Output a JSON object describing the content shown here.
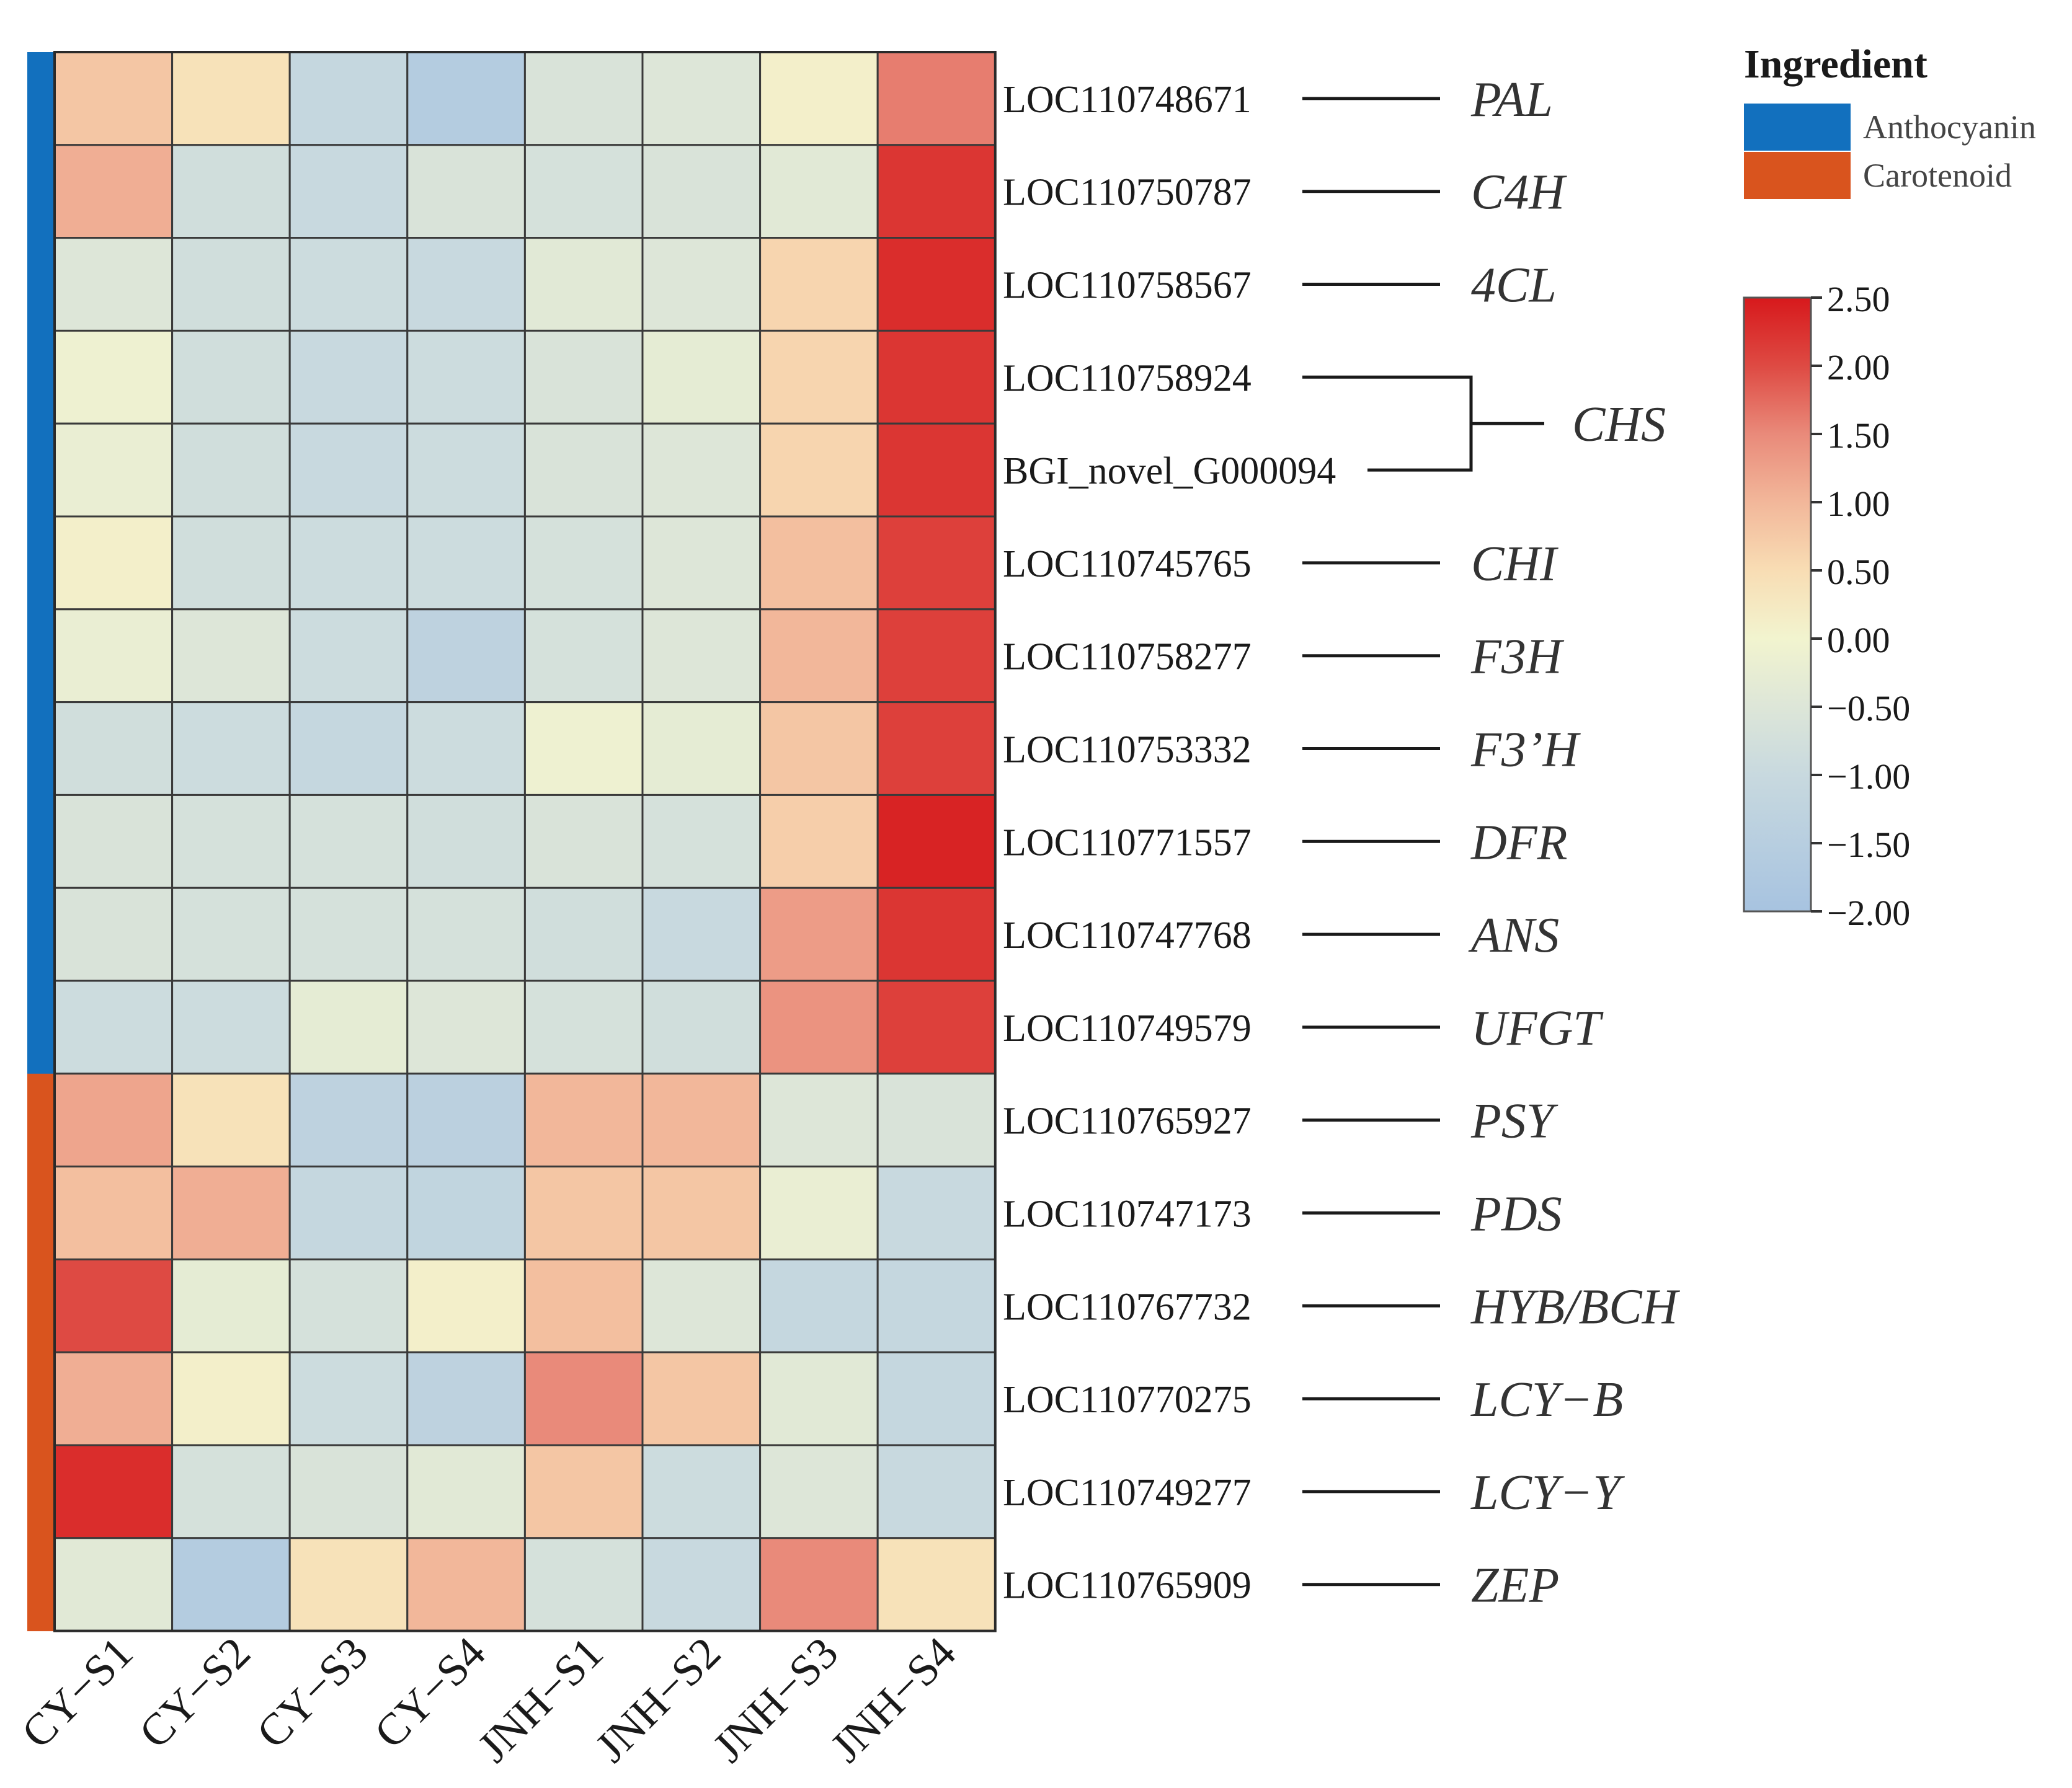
{
  "chart_data": {
    "type": "heatmap",
    "columns": [
      "CY−S1",
      "CY−S2",
      "CY−S3",
      "CY−S4",
      "JNH−S1",
      "JNH−S2",
      "JNH−S3",
      "JNH−S4"
    ],
    "rows": [
      {
        "id": "LOC110748671",
        "gene": "PAL",
        "group": "Anthocyanin",
        "values": [
          0.8,
          0.4,
          -1.1,
          -1.6,
          -0.6,
          -0.5,
          0.1,
          1.6
        ]
      },
      {
        "id": "LOC110750787",
        "gene": "C4H",
        "group": "Anthocyanin",
        "values": [
          1.1,
          -0.8,
          -1.0,
          -0.6,
          -0.7,
          -0.6,
          -0.4,
          2.2
        ]
      },
      {
        "id": "LOC110758567",
        "gene": "4CL",
        "group": "Anthocyanin",
        "values": [
          -0.5,
          -0.8,
          -0.9,
          -1.0,
          -0.4,
          -0.5,
          0.6,
          2.3
        ]
      },
      {
        "id": "LOC110758924",
        "gene": "CHS",
        "group": "Anthocyanin",
        "values": [
          -0.1,
          -0.8,
          -1.0,
          -0.9,
          -0.6,
          -0.3,
          0.6,
          2.2
        ]
      },
      {
        "id": "BGI_novel_G000094",
        "gene": "CHS",
        "group": "Anthocyanin",
        "values": [
          -0.2,
          -0.8,
          -1.0,
          -0.9,
          -0.6,
          -0.5,
          0.6,
          2.2
        ]
      },
      {
        "id": "LOC110745765",
        "gene": "CHI",
        "group": "Anthocyanin",
        "values": [
          0.1,
          -0.8,
          -0.9,
          -0.9,
          -0.7,
          -0.5,
          0.9,
          2.1
        ]
      },
      {
        "id": "LOC110758277",
        "gene": "F3H",
        "group": "Anthocyanin",
        "values": [
          -0.2,
          -0.5,
          -0.9,
          -1.3,
          -0.7,
          -0.5,
          1.0,
          2.1
        ]
      },
      {
        "id": "LOC110753332",
        "gene": "F3’H",
        "group": "Anthocyanin",
        "values": [
          -0.8,
          -0.9,
          -1.1,
          -0.9,
          -0.1,
          -0.3,
          0.8,
          2.1
        ]
      },
      {
        "id": "LOC110771557",
        "gene": "DFR",
        "group": "Anthocyanin",
        "values": [
          -0.6,
          -0.7,
          -0.7,
          -0.8,
          -0.6,
          -0.7,
          0.7,
          2.4
        ]
      },
      {
        "id": "LOC110747768",
        "gene": "ANS",
        "group": "Anthocyanin",
        "values": [
          -0.6,
          -0.7,
          -0.7,
          -0.7,
          -0.8,
          -1.0,
          1.3,
          2.2
        ]
      },
      {
        "id": "LOC110749579",
        "gene": "UFGT",
        "group": "Anthocyanin",
        "values": [
          -0.9,
          -0.9,
          -0.3,
          -0.5,
          -0.7,
          -0.8,
          1.4,
          2.1
        ]
      },
      {
        "id": "LOC110765927",
        "gene": "PSY",
        "group": "Carotenoid",
        "values": [
          1.2,
          0.4,
          -1.3,
          -1.4,
          1.0,
          1.0,
          -0.5,
          -0.6
        ]
      },
      {
        "id": "LOC110747173",
        "gene": "PDS",
        "group": "Carotenoid",
        "values": [
          0.9,
          1.1,
          -1.1,
          -1.2,
          0.8,
          0.8,
          -0.2,
          -1.0
        ]
      },
      {
        "id": "LOC110767732",
        "gene": "HYB/BCH",
        "group": "Carotenoid",
        "values": [
          2.0,
          -0.3,
          -0.7,
          0.1,
          0.9,
          -0.5,
          -1.1,
          -1.1
        ]
      },
      {
        "id": "LOC110770275",
        "gene": "LCY−B",
        "group": "Carotenoid",
        "values": [
          1.1,
          0.1,
          -0.9,
          -1.3,
          1.5,
          0.8,
          -0.4,
          -1.1
        ]
      },
      {
        "id": "LOC110749277",
        "gene": "LCY−Y",
        "group": "Carotenoid",
        "values": [
          2.3,
          -0.7,
          -0.6,
          -0.4,
          0.8,
          -0.9,
          -0.5,
          -1.0
        ]
      },
      {
        "id": "LOC110765909",
        "gene": "ZEP",
        "group": "Carotenoid",
        "values": [
          -0.4,
          -1.6,
          0.4,
          1.0,
          -0.7,
          -1.0,
          1.5,
          0.4
        ]
      }
    ],
    "legend": {
      "title": "Ingredient",
      "groups": [
        {
          "name": "Anthocyanin",
          "color": "#1270be"
        },
        {
          "name": "Carotenoid",
          "color": "#d9541e"
        }
      ]
    },
    "color_scale": {
      "min": -2.0,
      "max": 2.5,
      "ticks": [
        "2.50",
        "2.00",
        "1.50",
        "1.00",
        "0.50",
        "0.00",
        "−0.50",
        "−1.00",
        "−1.50",
        "−2.00"
      ],
      "stops": [
        {
          "value": -2.0,
          "color": "#a7c3e0"
        },
        {
          "value": -1.0,
          "color": "#c8d9df"
        },
        {
          "value": -0.5,
          "color": "#dde6d8"
        },
        {
          "value": 0.0,
          "color": "#f2f4cf"
        },
        {
          "value": 0.5,
          "color": "#f8ddb4"
        },
        {
          "value": 1.0,
          "color": "#f2b79a"
        },
        {
          "value": 1.5,
          "color": "#e98a7a"
        },
        {
          "value": 2.0,
          "color": "#de4a43"
        },
        {
          "value": 2.5,
          "color": "#d7191c"
        }
      ]
    }
  }
}
